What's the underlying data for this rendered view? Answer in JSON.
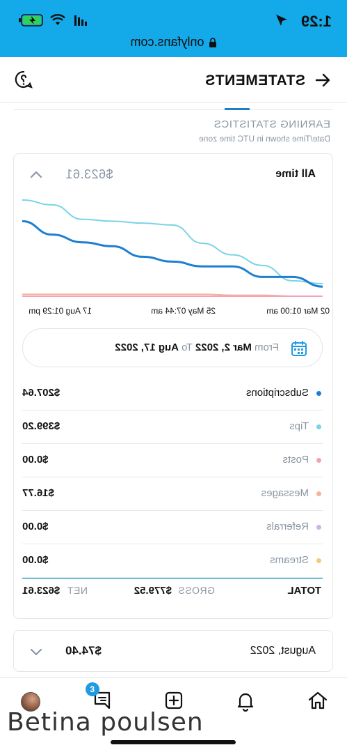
{
  "status_bar": {
    "time": "1:29",
    "url": "onlyfans.com",
    "icons": [
      "location-arrow-icon",
      "signal-icon",
      "wifi-icon",
      "battery-charging-icon",
      "lock-icon"
    ]
  },
  "header": {
    "title": "STATEMENTS",
    "back_icon": "arrow-left-icon",
    "help_icon": "help-circle-icon"
  },
  "section": {
    "title": "EARNING STATISTICS",
    "subtitle": "Date/Time shown in UTC time zone"
  },
  "summary_card": {
    "period": "All time",
    "total": "$623.61",
    "date_range": {
      "from_label": "From",
      "from_value": "Mar 2, 2022",
      "to_label": "To",
      "to_value": "Aug 17, 2022"
    },
    "rows": [
      {
        "label": "Subscriptions",
        "value": "$207.64",
        "color": "#1e7fd0",
        "muted": false
      },
      {
        "label": "Tips",
        "value": "$399.20",
        "color": "#7ad3e6",
        "muted": true
      },
      {
        "label": "Posts",
        "value": "$0.00",
        "color": "#f2a3b8",
        "muted": true
      },
      {
        "label": "Messages",
        "value": "$16.77",
        "color": "#f4b39b",
        "muted": true
      },
      {
        "label": "Referrals",
        "value": "$0.00",
        "color": "#c7b6e8",
        "muted": true
      },
      {
        "label": "Streams",
        "value": "$0.00",
        "color": "#f6c87a",
        "muted": true
      }
    ],
    "totals": {
      "total_label": "TOTAL",
      "gross_label": "GROSS",
      "gross_value": "$779.52",
      "net_label": "NET",
      "net_value": "$623.61"
    }
  },
  "chart_data": {
    "type": "line",
    "x_tick_labels": [
      "02 Mar 01:00 am",
      "25 May 07:44 am",
      "17 Aug 01:29 pm"
    ],
    "x": [
      0,
      0.1,
      0.2,
      0.3,
      0.4,
      0.5,
      0.6,
      0.7,
      0.8,
      0.9,
      1.0
    ],
    "series": [
      {
        "color": "#7ad3e6",
        "values": [
          0.13,
          0.16,
          0.32,
          0.43,
          0.55,
          0.74,
          0.76,
          0.78,
          0.8,
          0.95,
          1.0
        ]
      },
      {
        "color": "#1e7fd0",
        "values": [
          0.1,
          0.2,
          0.2,
          0.31,
          0.31,
          0.36,
          0.41,
          0.52,
          0.56,
          0.64,
          0.78
        ]
      },
      {
        "color": "#f4b39b",
        "values": [
          0.0,
          0.0,
          0.01,
          0.01,
          0.02,
          0.02,
          0.02,
          0.02,
          0.02,
          0.02,
          0.02
        ]
      },
      {
        "color": "#f2a3b8",
        "values": [
          0.0,
          0.0,
          0.0,
          0.0,
          0.0,
          0.0,
          0.0,
          0.0,
          0.0,
          0.0,
          0.0
        ]
      }
    ]
  },
  "month_card": {
    "label": "August, 2022",
    "value": "$74.40"
  },
  "bottom_nav": {
    "items": [
      "home-icon",
      "bell-icon",
      "plus-square-icon",
      "messages-icon",
      "avatar"
    ],
    "messages_badge": "3"
  },
  "watermark": "Betina poulsen"
}
